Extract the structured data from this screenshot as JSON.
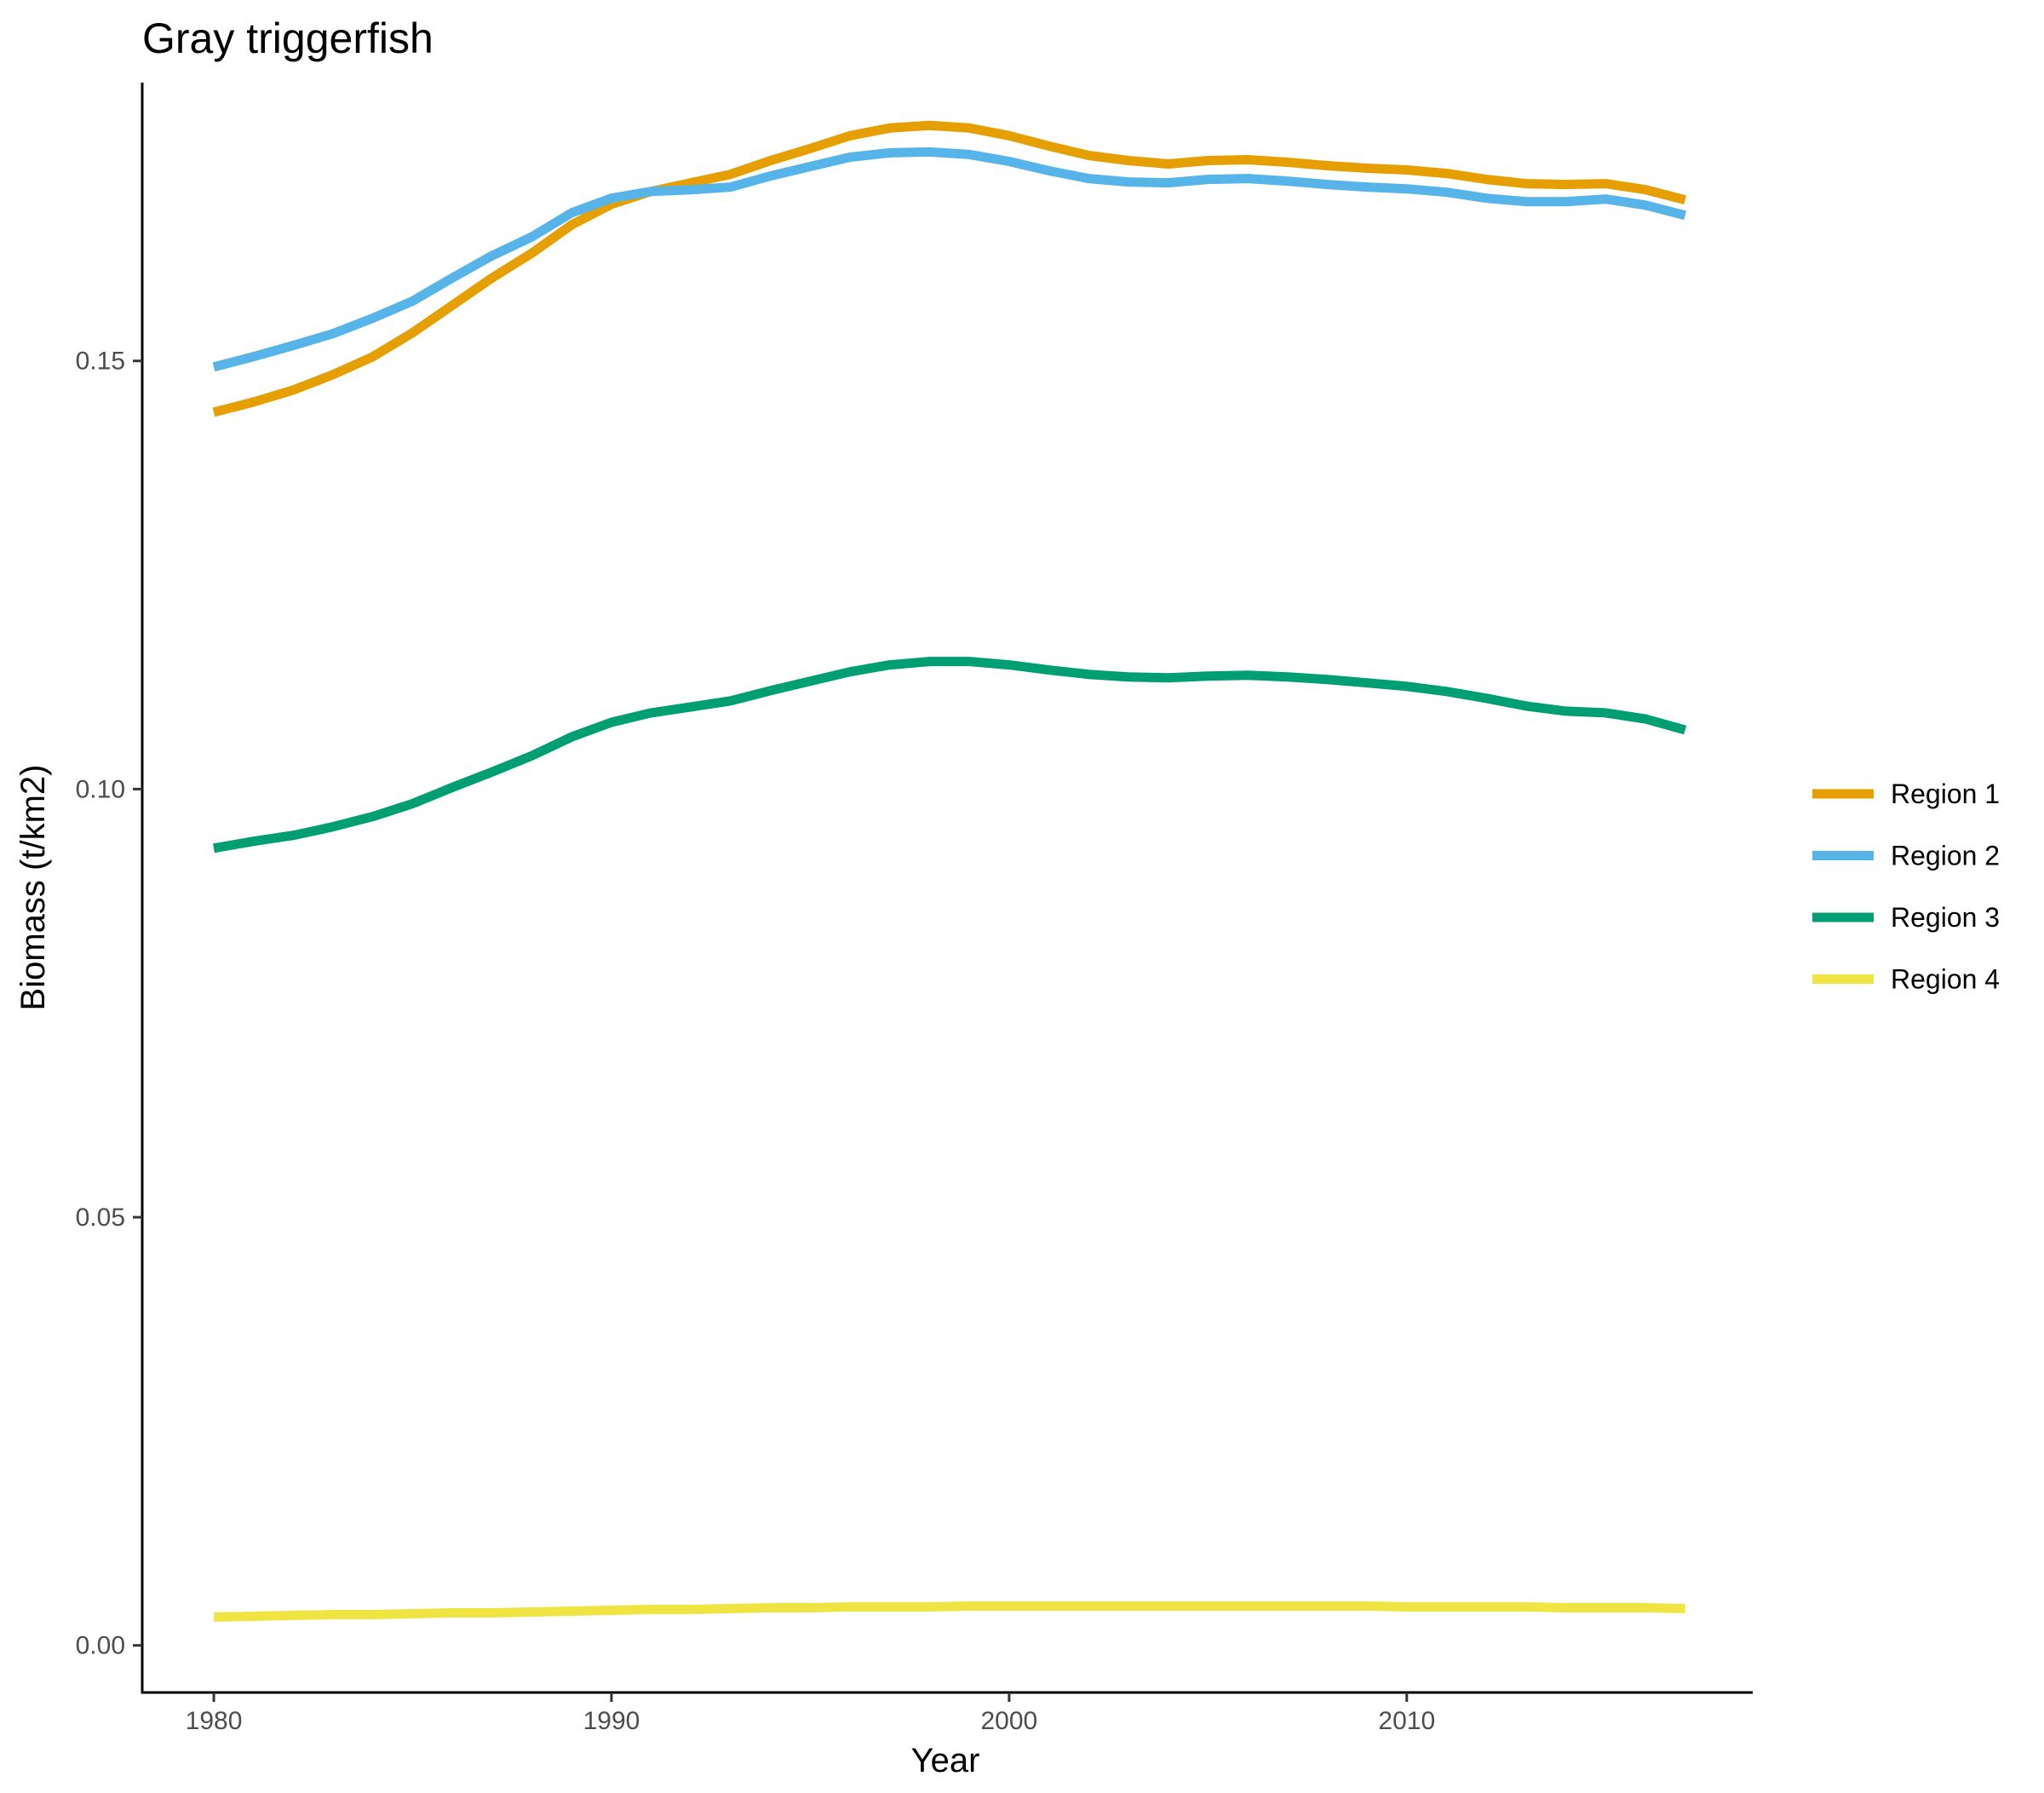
{
  "chart_data": {
    "type": "line",
    "title": "Gray triggerfish",
    "xlabel": "Year",
    "ylabel": "Biomass (t/km2)",
    "xlim": [
      1978.2,
      2018.7
    ],
    "ylim": [
      -0.0055,
      0.1825
    ],
    "x_ticks": [
      1980,
      1990,
      2000,
      2010
    ],
    "x_tick_labels": [
      "1980",
      "1990",
      "2000",
      "2010"
    ],
    "y_ticks": [
      0.0,
      0.05,
      0.1,
      0.15
    ],
    "y_tick_labels": [
      "0.00",
      "0.05",
      "0.10",
      "0.15"
    ],
    "grid": false,
    "legend_position": "right",
    "x": [
      1980,
      1981,
      1982,
      1983,
      1984,
      1985,
      1986,
      1987,
      1988,
      1989,
      1990,
      1991,
      1992,
      1993,
      1994,
      1995,
      1996,
      1997,
      1998,
      1999,
      2000,
      2001,
      2002,
      2003,
      2004,
      2005,
      2006,
      2007,
      2008,
      2009,
      2010,
      2011,
      2012,
      2013,
      2014,
      2015,
      2016,
      2017
    ],
    "series": [
      {
        "name": "Region 1",
        "color": "#E69F00",
        "values": [
          0.144,
          0.1452,
          0.1466,
          0.1484,
          0.1505,
          0.1533,
          0.1565,
          0.1597,
          0.1626,
          0.1659,
          0.1683,
          0.1698,
          0.1708,
          0.1718,
          0.1734,
          0.1748,
          0.1763,
          0.1772,
          0.1775,
          0.1772,
          0.1763,
          0.1751,
          0.174,
          0.1734,
          0.173,
          0.1734,
          0.1735,
          0.1732,
          0.1728,
          0.1725,
          0.1723,
          0.1719,
          0.1712,
          0.1707,
          0.1706,
          0.1707,
          0.17,
          0.1688
        ]
      },
      {
        "name": "Region 2",
        "color": "#56B4E9",
        "values": [
          0.1493,
          0.1505,
          0.1518,
          0.1532,
          0.155,
          0.157,
          0.1597,
          0.1623,
          0.1645,
          0.1673,
          0.169,
          0.1698,
          0.17,
          0.1703,
          0.1716,
          0.1727,
          0.1738,
          0.1743,
          0.1744,
          0.1741,
          0.1733,
          0.1722,
          0.1713,
          0.1709,
          0.1708,
          0.1712,
          0.1713,
          0.171,
          0.1706,
          0.1703,
          0.1701,
          0.1697,
          0.169,
          0.1686,
          0.1686,
          0.1689,
          0.1682,
          0.167
        ]
      },
      {
        "name": "Region 3",
        "color": "#009E73",
        "values": [
          0.0931,
          0.0939,
          0.0946,
          0.0956,
          0.0968,
          0.0983,
          0.1002,
          0.102,
          0.1039,
          0.1061,
          0.1078,
          0.1089,
          0.1096,
          0.1103,
          0.1115,
          0.1126,
          0.1137,
          0.1145,
          0.1149,
          0.1149,
          0.1145,
          0.1139,
          0.1134,
          0.1131,
          0.113,
          0.1132,
          0.1133,
          0.1131,
          0.1128,
          0.1124,
          0.112,
          0.1114,
          0.1106,
          0.1097,
          0.1091,
          0.1089,
          0.1082,
          0.1069
        ]
      },
      {
        "name": "Region 4",
        "color": "#F0E442",
        "values": [
          0.0033,
          0.0034,
          0.0035,
          0.0036,
          0.0036,
          0.0037,
          0.0038,
          0.0038,
          0.0039,
          0.004,
          0.0041,
          0.0042,
          0.0042,
          0.0043,
          0.0044,
          0.0044,
          0.0045,
          0.0045,
          0.0045,
          0.0046,
          0.0046,
          0.0046,
          0.0046,
          0.0046,
          0.0046,
          0.0046,
          0.0046,
          0.0046,
          0.0046,
          0.0046,
          0.0045,
          0.0045,
          0.0045,
          0.0045,
          0.0044,
          0.0044,
          0.0044,
          0.0043
        ]
      }
    ]
  }
}
